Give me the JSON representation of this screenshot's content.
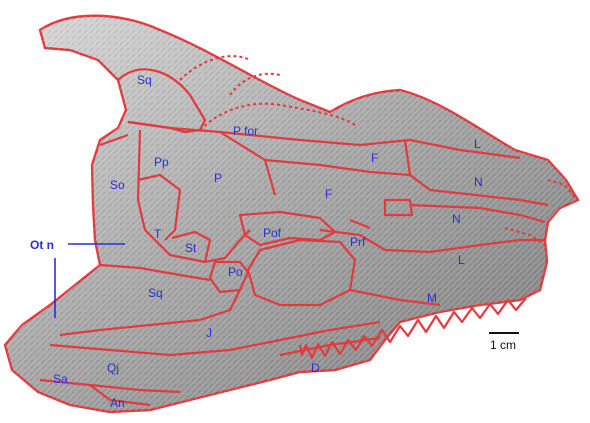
{
  "labels": {
    "sq_top": "Sq",
    "p_for": "P for",
    "pp": "Pp",
    "p": "P",
    "so": "So",
    "f_upper": "F",
    "f_lower": "F",
    "l_upper": "L",
    "n_upper": "N",
    "n_lower": "N",
    "l_lower": "L",
    "t": "T",
    "st": "St",
    "pof": "Pof",
    "prf": "Prf",
    "po": "Po",
    "sq_lower": "Sq",
    "m": "M",
    "j": "J",
    "qj": "Qj",
    "d": "D",
    "sa": "Sa",
    "an": "An",
    "ot_n": "Ot n"
  },
  "scale_bar": {
    "label": "1 cm"
  },
  "colors": {
    "outline": "#e23a3f",
    "label": "#2a2fd6",
    "bone_light": "#d4d4d4",
    "bone_mid": "#a9a9a9",
    "bone_dark": "#6e6e6e"
  }
}
